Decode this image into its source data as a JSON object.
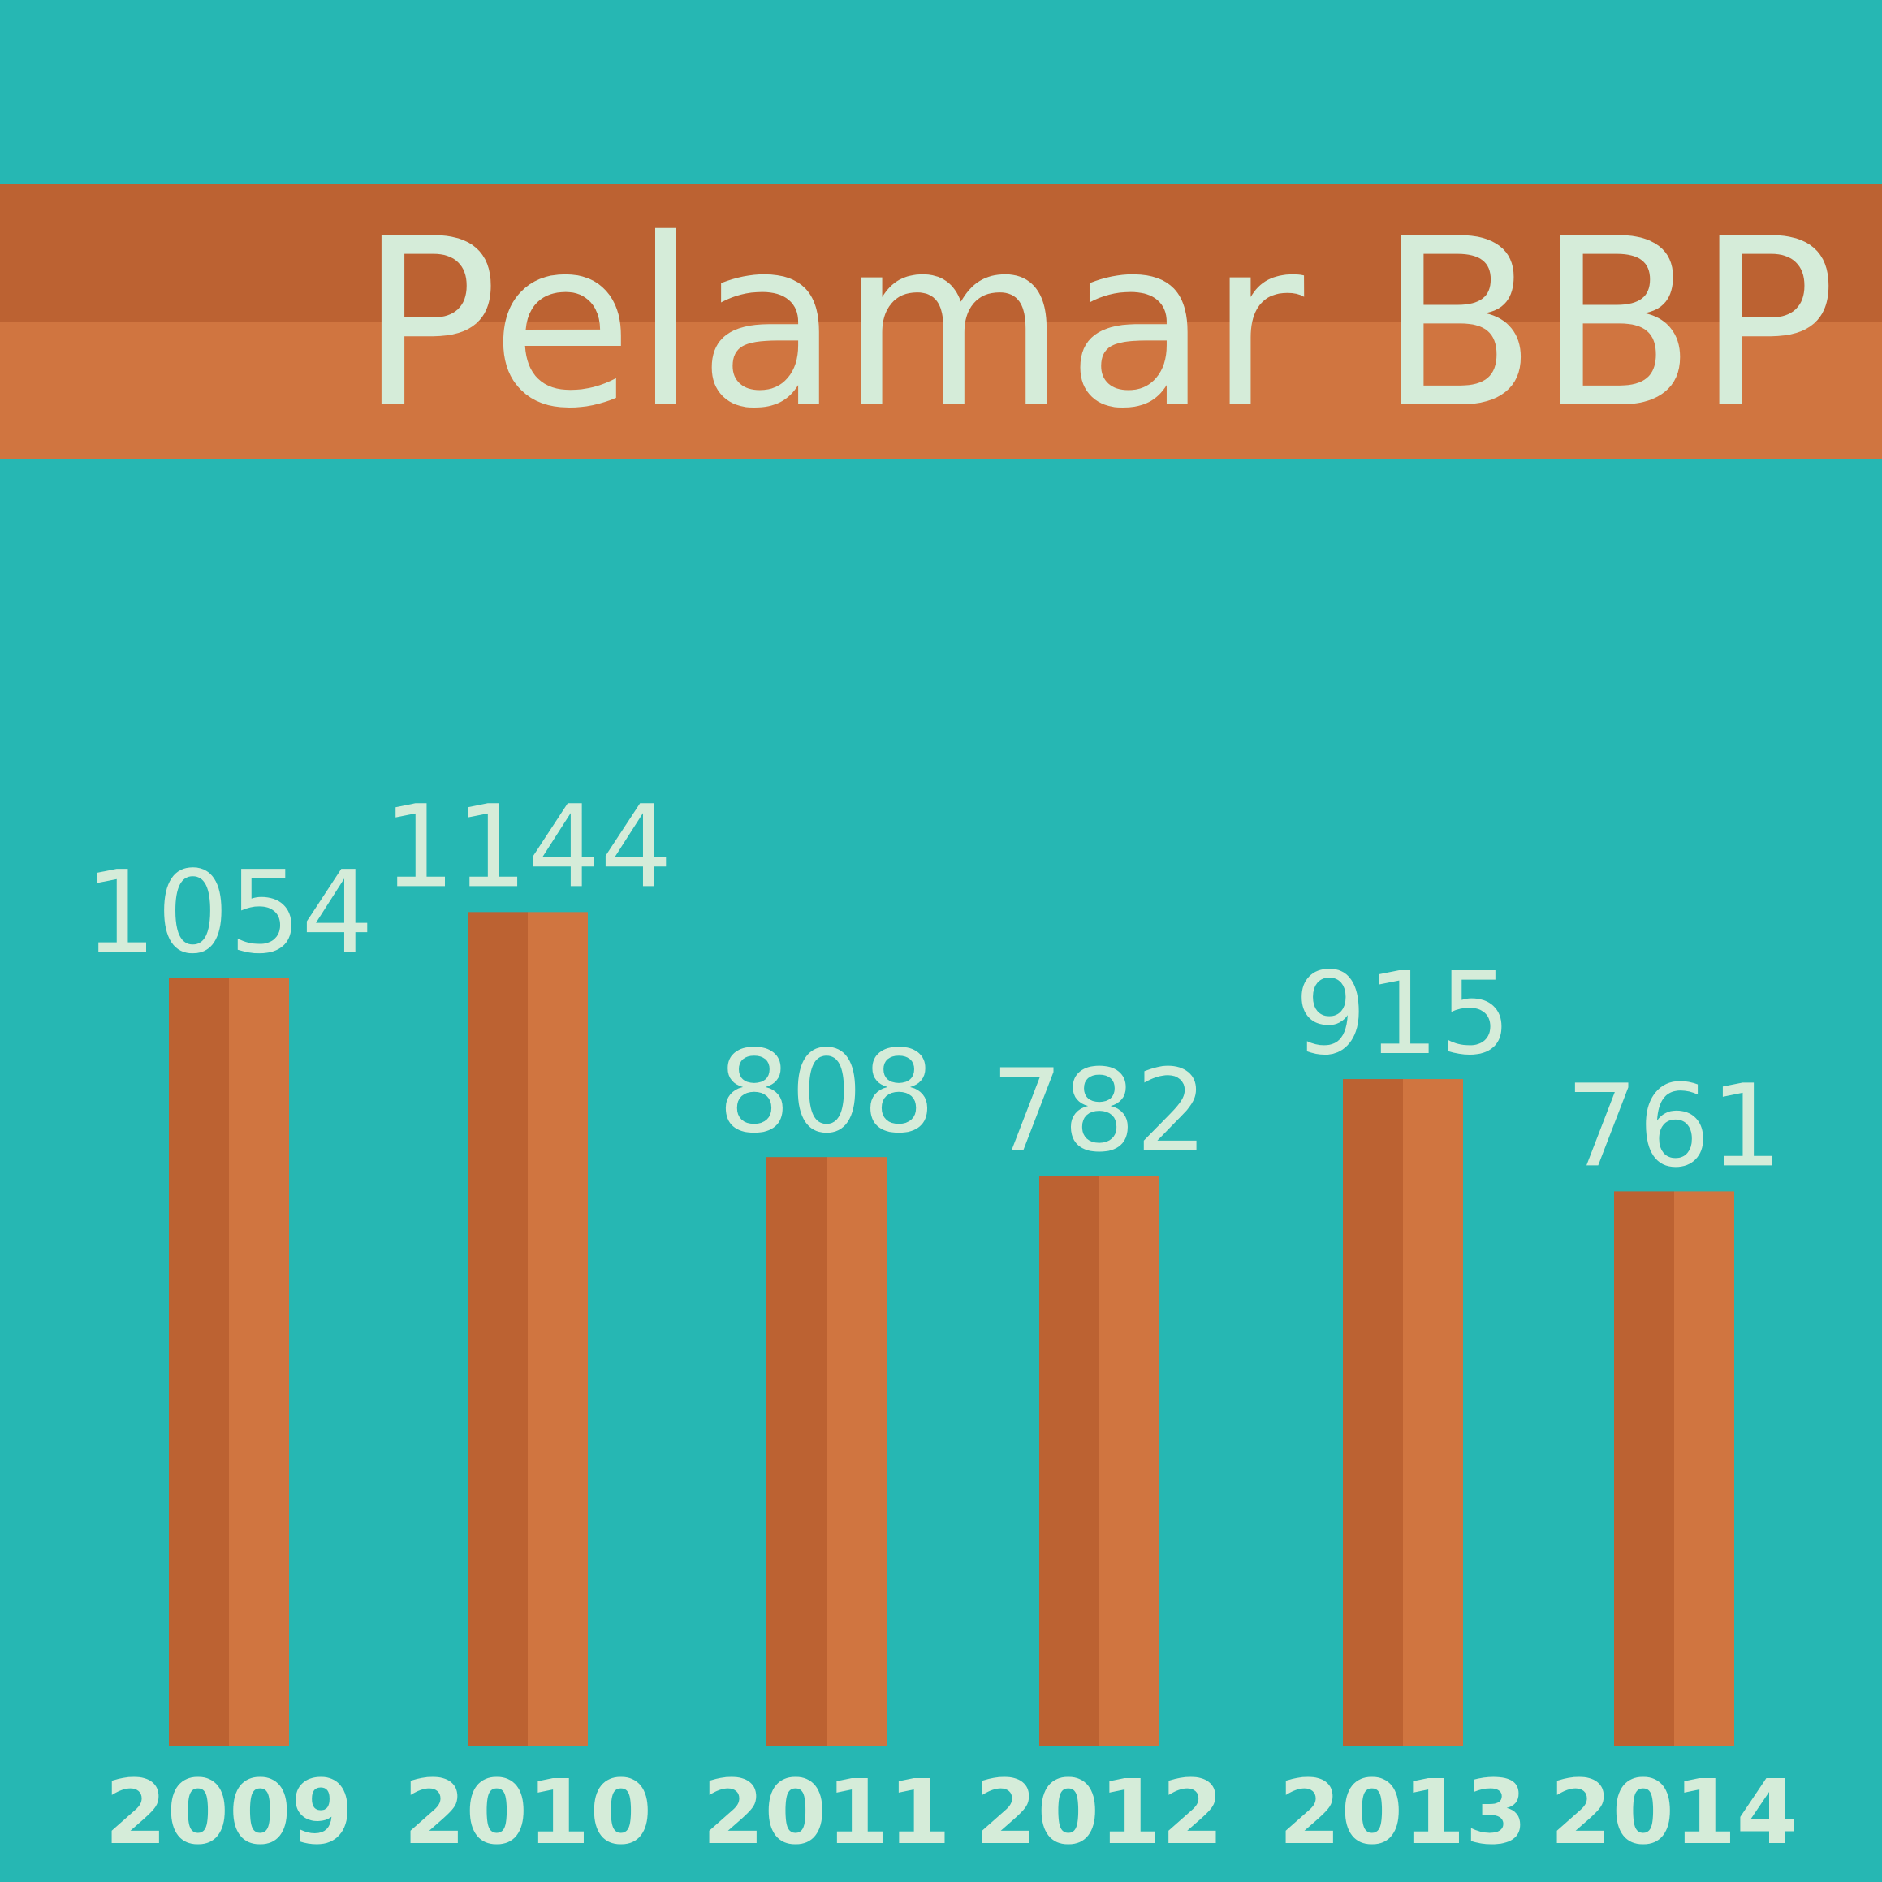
{
  "colors": {
    "background": "#26b7b3",
    "bar_dark": "#bc6232",
    "bar_light": "#d07540",
    "text": "#d5ecd9"
  },
  "chart_data": {
    "type": "bar",
    "title": "Pelamar BBP",
    "xlabel": "",
    "ylabel": "",
    "categories": [
      "2009",
      "2010",
      "2011",
      "2012",
      "2013",
      "2014"
    ],
    "values": [
      1054,
      1144,
      808,
      782,
      915,
      761
    ],
    "data_labels": [
      "1054",
      "1144",
      "808",
      "782",
      "915",
      "761"
    ],
    "ylim": [
      0,
      1760
    ],
    "grid": false,
    "legend": "none"
  }
}
